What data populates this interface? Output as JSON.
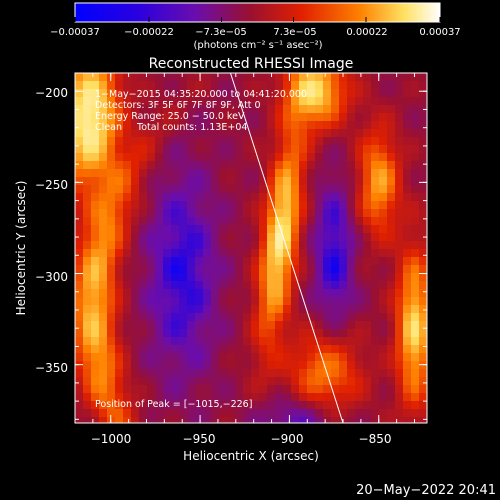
{
  "chart_data": {
    "type": "heatmap",
    "title": "Reconstructed RHESSI Image",
    "xlabel": "Heliocentric X (arcsec)",
    "ylabel": "Heliocentric Y (arcsec)",
    "xlim": [
      -1020,
      -823
    ],
    "ylim": [
      -382,
      -190
    ],
    "x_ticks": [
      -1000,
      -950,
      -900,
      -850
    ],
    "y_ticks": [
      -200,
      -250,
      -300,
      -350
    ],
    "x_tick_labels": [
      "−1000",
      "−950",
      "−900",
      "−850"
    ],
    "y_tick_labels": [
      "−200",
      "−250",
      "−300",
      "−350"
    ],
    "colorbar": {
      "min": -0.00037,
      "max": 0.00037,
      "tick_values": [
        -0.00037,
        -0.00022,
        -7.3e-05,
        7.3e-05,
        0.00022,
        0.00037
      ],
      "tick_labels": [
        "−0.00037",
        "−0.00022",
        "−7.3e−05",
        "7.3e−05",
        "0.00022",
        "0.00037"
      ],
      "unit_label": "(photons cm⁻² s⁻¹ asec⁻²)",
      "colors": [
        "#0000ff",
        "#6a0dad",
        "#9a1030",
        "#e02000",
        "#ff8000",
        "#ffe060",
        "#ffffff"
      ]
    },
    "annotations": [
      "1−May−2015 04:35:20.000 to 04:41:20.000",
      "Detectors: 3F 5F 6F 7F 8F 9F, Att 0",
      "Energy Range: 25.0 − 50.0 keV",
      "Clean     Total counts: 1.13E+04"
    ],
    "peak_label": "Position of Peak = [−1015,−226]",
    "peak": [
      -1015,
      -226
    ],
    "limb_line": [
      [
        -933,
        -190
      ],
      [
        -870,
        -382
      ]
    ],
    "grid": false
  },
  "timestamp": "20−May−2022 20:41"
}
